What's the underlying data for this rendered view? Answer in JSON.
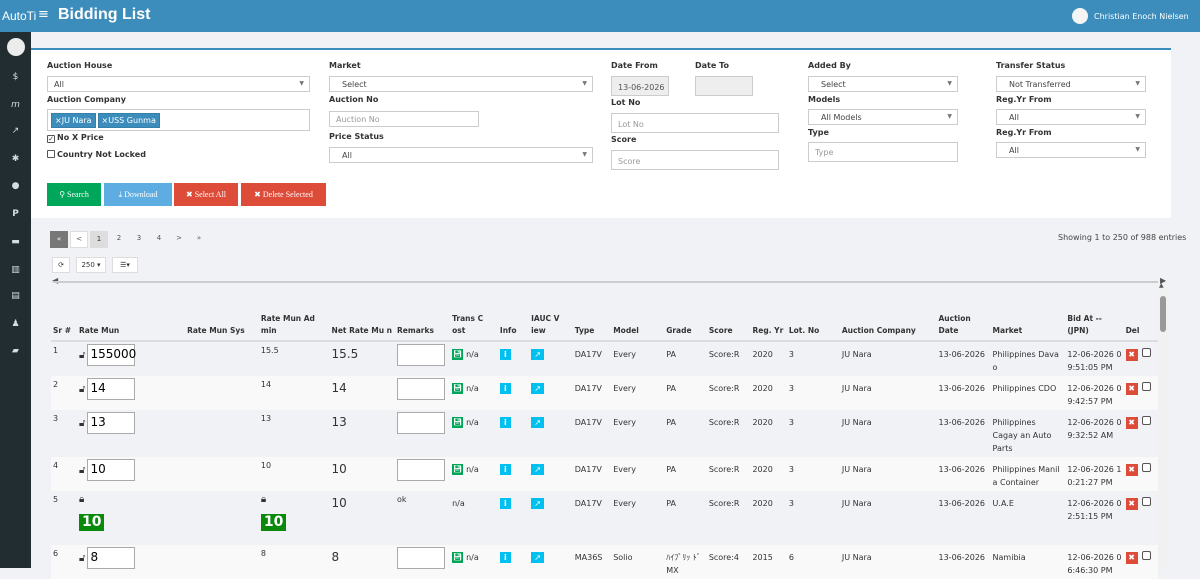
{
  "topbar": {
    "brand": "AutoTi",
    "menu_icon": "hamburger-icon",
    "title": "Bidding List",
    "user": "Christian Enoch Nielsen"
  },
  "sidebar": {
    "icons": [
      "dollar-icon",
      "m-icon",
      "chart-icon",
      "bug-icon",
      "info-icon",
      "parking-icon",
      "car-icon",
      "bank-icon",
      "list-icon",
      "users-icon",
      "truck-icon"
    ]
  },
  "filters": {
    "auction_house": {
      "label": "Auction House",
      "value": "All"
    },
    "auction_company": {
      "label": "Auction Company",
      "tags": [
        "×JU Nara",
        "×USS Gunma"
      ]
    },
    "no_x_price": {
      "label": "No X Price",
      "checked": true
    },
    "country_not_locked": {
      "label": "Country Not Locked",
      "checked": false
    },
    "market": {
      "label": "Market",
      "value": "Select"
    },
    "auction_no": {
      "label": "Auction No",
      "placeholder": "Auction No"
    },
    "price_status": {
      "label": "Price Status",
      "value": "All"
    },
    "date_from": {
      "label": "Date From",
      "value": "13-06-2026"
    },
    "date_to": {
      "label": "Date To",
      "value": ""
    },
    "lot_no": {
      "label": "Lot No",
      "placeholder": "Lot No"
    },
    "score": {
      "label": "Score",
      "placeholder": "Score"
    },
    "added_by": {
      "label": "Added By",
      "value": "Select"
    },
    "models": {
      "label": "Models",
      "value": "All Models"
    },
    "type": {
      "label": "Type",
      "placeholder": "Type"
    },
    "transfer_status": {
      "label": "Transfer Status",
      "value": "Not Transferred"
    },
    "reg_yr_from": {
      "label": "Reg.Yr From",
      "value": "All"
    },
    "reg_yr_from2": {
      "label": "Reg.Yr From",
      "value": "All"
    }
  },
  "buttons": {
    "search": "Search",
    "download": "Download",
    "select_all": "Select All",
    "delete_selected": "Delete Selected"
  },
  "colors": {
    "topbar": "#3c8dbc",
    "sidebar": "#222d32",
    "search": "#00a65a",
    "download": "#5dade2",
    "danger": "#dd4b39",
    "badge": "#0a8a0a"
  },
  "pagination": {
    "first": "«",
    "prev": "<",
    "pages": [
      "1",
      "2",
      "3",
      "4"
    ],
    "next": ">",
    "last": "»",
    "showing": "Showing 1 to 250 of 988 entries"
  },
  "toolbar": {
    "page_size": "250 ▾"
  },
  "table": {
    "headers": {
      "sr": "Sr #",
      "rate_mun": "Rate Mun",
      "rate_mun_sys": "Rate Mun Sys",
      "rate_mun_admin": "Rate Mun Ad min",
      "net_rate": "Net Rate Mu n",
      "remarks": "Remarks",
      "trans": "Trans C ost",
      "info": "Info",
      "iauc": "IAUC V iew",
      "type": "Type",
      "model": "Model",
      "grade": "Grade",
      "score": "Score",
      "reg": "Reg. Yr",
      "lot": "Lot. No",
      "company": "Auction Company",
      "adate": "Auction Date",
      "market": "Market",
      "bid_at": "Bid At -- (JPN)",
      "del": "Del"
    },
    "rows": [
      {
        "sr": "1",
        "rate": "155000",
        "admin": "15.5",
        "net": "15.5",
        "remarks": "",
        "trans": "n/a",
        "type": "DA17V",
        "model": "Every",
        "grade": "PA",
        "score": "Score:R",
        "reg": "2020",
        "lot": "3",
        "company": "JU Nara",
        "adate": "13-06-2026",
        "market": "Philippines Dava o",
        "bid": "12-06-2026 0 9:51:05 PM"
      },
      {
        "sr": "2",
        "rate": "14",
        "admin": "14",
        "net": "14",
        "remarks": "",
        "trans": "n/a",
        "type": "DA17V",
        "model": "Every",
        "grade": "PA",
        "score": "Score:R",
        "reg": "2020",
        "lot": "3",
        "company": "JU Nara",
        "adate": "13-06-2026",
        "market": "Philippines CDO",
        "bid": "12-06-2026 0 9:42:57 PM"
      },
      {
        "sr": "3",
        "rate": "13",
        "admin": "13",
        "net": "13",
        "remarks": "",
        "trans": "n/a",
        "type": "DA17V",
        "model": "Every",
        "grade": "PA",
        "score": "Score:R",
        "reg": "2020",
        "lot": "3",
        "company": "JU Nara",
        "adate": "13-06-2026",
        "market": "Philippines Cagay an Auto Parts",
        "bid": "12-06-2026 0 9:32:52 AM"
      },
      {
        "sr": "4",
        "rate": "10",
        "admin": "10",
        "net": "10",
        "remarks": "",
        "trans": "n/a",
        "type": "DA17V",
        "model": "Every",
        "grade": "PA",
        "score": "Score:R",
        "reg": "2020",
        "lot": "3",
        "company": "JU Nara",
        "adate": "13-06-2026",
        "market": "Philippines Manil a Container",
        "bid": "12-06-2026 1 0:21:27 PM"
      },
      {
        "sr": "5",
        "locked_rate": "10",
        "locked_admin": "10",
        "net": "10",
        "remarks": "ok",
        "trans": "n/a",
        "type": "DA17V",
        "model": "Every",
        "grade": "PA",
        "score": "Score:R",
        "reg": "2020",
        "lot": "3",
        "company": "JU Nara",
        "adate": "13-06-2026",
        "market": "U.A.E",
        "bid": "12-06-2026 0 2:51:15 PM"
      },
      {
        "sr": "6",
        "rate": "8",
        "admin": "8",
        "net": "8",
        "remarks": "",
        "trans": "n/a",
        "type": "MA36S",
        "model": "Solio",
        "grade": "ﾊｲﾌﾞﾘｯ ﾄﾞ MX",
        "score": "Score:4",
        "reg": "2015",
        "lot": "6",
        "company": "JU Nara",
        "adate": "13-06-2026",
        "market": "Namibia",
        "bid": "12-06-2026 0 6:46:30 PM"
      }
    ]
  }
}
